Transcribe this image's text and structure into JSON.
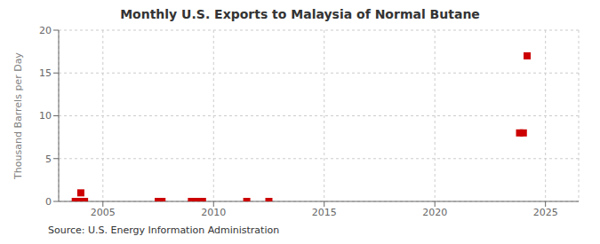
{
  "chart_data": {
    "type": "scatter",
    "title": "Monthly U.S. Exports to Malaysia of Normal Butane",
    "ylabel": "Thousand Barrels per Day",
    "source": "Source: U.S. Energy Information Administration",
    "x": [
      2003.75,
      2003.92,
      2004.0,
      2004.17,
      2007.5,
      2007.67,
      2009.0,
      2009.25,
      2009.5,
      2011.5,
      2012.5,
      2023.83,
      2024.0,
      2024.17
    ],
    "values": [
      0.0,
      0.0,
      1.0,
      0.0,
      0.0,
      0.0,
      0.0,
      0.0,
      0.0,
      0.0,
      0.0,
      8.0,
      8.0,
      17.0
    ],
    "color": "#cc0000",
    "marker": "square",
    "xlim": [
      2003.0,
      2026.5
    ],
    "ylim": [
      0,
      20
    ],
    "xticks": [
      2005,
      2010,
      2015,
      2020,
      2025
    ],
    "yticks": [
      0,
      5,
      10,
      15,
      20
    ],
    "grid": true
  }
}
